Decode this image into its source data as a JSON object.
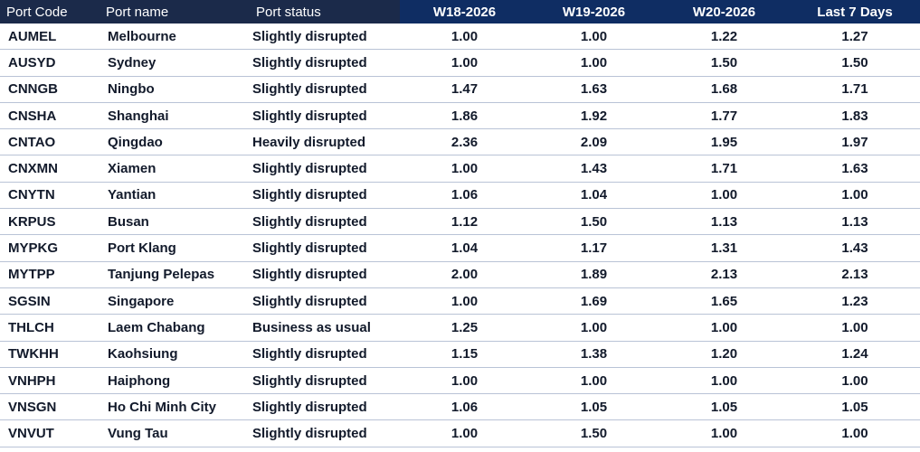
{
  "chart_data": {
    "type": "table",
    "columns": [
      "Port Code",
      "Port name",
      "Port status",
      "W18-2026",
      "W19-2026",
      "W20-2026",
      "Last 7 Days"
    ],
    "rows": [
      {
        "code": "AUMEL",
        "name": "Melbourne",
        "status": "Slightly disrupted",
        "w18": "1.00",
        "w19": "1.00",
        "w20": "1.22",
        "last7": "1.27"
      },
      {
        "code": "AUSYD",
        "name": "Sydney",
        "status": "Slightly disrupted",
        "w18": "1.00",
        "w19": "1.00",
        "w20": "1.50",
        "last7": "1.50"
      },
      {
        "code": "CNNGB",
        "name": "Ningbo",
        "status": "Slightly disrupted",
        "w18": "1.47",
        "w19": "1.63",
        "w20": "1.68",
        "last7": "1.71"
      },
      {
        "code": "CNSHA",
        "name": "Shanghai",
        "status": "Slightly disrupted",
        "w18": "1.86",
        "w19": "1.92",
        "w20": "1.77",
        "last7": "1.83"
      },
      {
        "code": "CNTAO",
        "name": "Qingdao",
        "status": "Heavily disrupted",
        "w18": "2.36",
        "w19": "2.09",
        "w20": "1.95",
        "last7": "1.97"
      },
      {
        "code": "CNXMN",
        "name": "Xiamen",
        "status": "Slightly disrupted",
        "w18": "1.00",
        "w19": "1.43",
        "w20": "1.71",
        "last7": "1.63"
      },
      {
        "code": "CNYTN",
        "name": "Yantian",
        "status": "Slightly disrupted",
        "w18": "1.06",
        "w19": "1.04",
        "w20": "1.00",
        "last7": "1.00"
      },
      {
        "code": "KRPUS",
        "name": "Busan",
        "status": "Slightly disrupted",
        "w18": "1.12",
        "w19": "1.50",
        "w20": "1.13",
        "last7": "1.13"
      },
      {
        "code": "MYPKG",
        "name": "Port Klang",
        "status": "Slightly disrupted",
        "w18": "1.04",
        "w19": "1.17",
        "w20": "1.31",
        "last7": "1.43"
      },
      {
        "code": "MYTPP",
        "name": "Tanjung Pelepas",
        "status": "Slightly disrupted",
        "w18": "2.00",
        "w19": "1.89",
        "w20": "2.13",
        "last7": "2.13"
      },
      {
        "code": "SGSIN",
        "name": "Singapore",
        "status": "Slightly disrupted",
        "w18": "1.00",
        "w19": "1.69",
        "w20": "1.65",
        "last7": "1.23"
      },
      {
        "code": "THLCH",
        "name": "Laem Chabang",
        "status": "Business as usual",
        "w18": "1.25",
        "w19": "1.00",
        "w20": "1.00",
        "last7": "1.00"
      },
      {
        "code": "TWKHH",
        "name": "Kaohsiung",
        "status": "Slightly disrupted",
        "w18": "1.15",
        "w19": "1.38",
        "w20": "1.20",
        "last7": "1.24"
      },
      {
        "code": "VNHPH",
        "name": "Haiphong",
        "status": "Slightly disrupted",
        "w18": "1.00",
        "w19": "1.00",
        "w20": "1.00",
        "last7": "1.00"
      },
      {
        "code": "VNSGN",
        "name": "Ho Chi Minh City",
        "status": "Slightly disrupted",
        "w18": "1.06",
        "w19": "1.05",
        "w20": "1.05",
        "last7": "1.05"
      },
      {
        "code": "VNVUT",
        "name": "Vung Tau",
        "status": "Slightly disrupted",
        "w18": "1.00",
        "w19": "1.50",
        "w20": "1.00",
        "last7": "1.00"
      }
    ]
  },
  "colors": {
    "header_left_bg": "#1b2a4a",
    "header_right_bg": "#0f2d63",
    "row_divider": "#b9c3d6",
    "text": "#121a2b"
  }
}
